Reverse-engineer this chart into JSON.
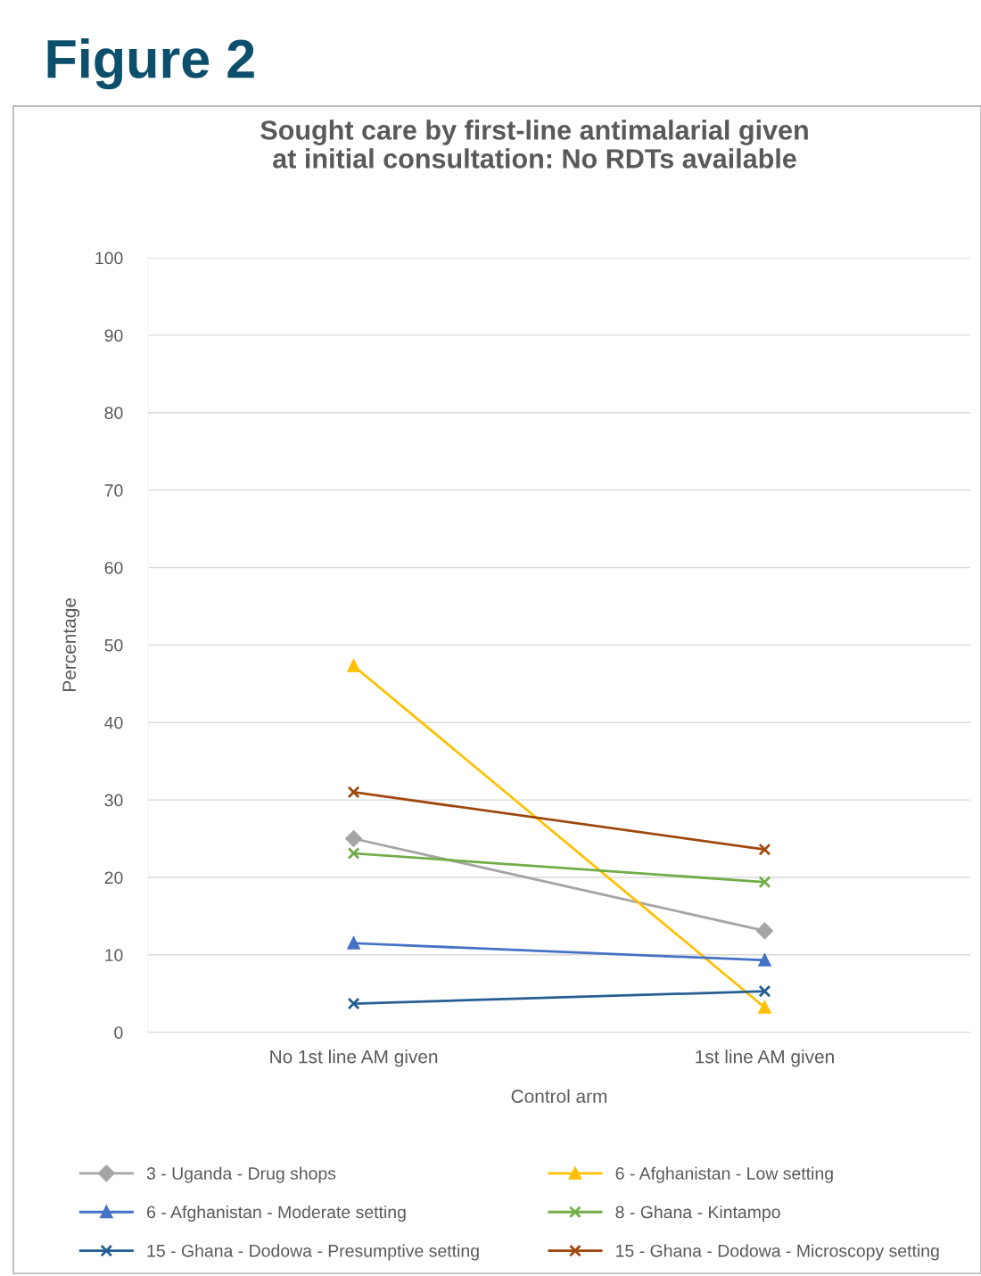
{
  "chart_data": {
    "type": "line",
    "title": "Sought care by first-line antimalarial given\nat initial consultation: No RDTs available",
    "annotations": [
      "Figure 2"
    ],
    "xlabel": "Control arm",
    "ylabel": "Percentage",
    "categories": [
      "No 1st line AM given",
      "1st line AM given"
    ],
    "ylim": [
      0,
      100
    ],
    "yticks": [
      0,
      10,
      20,
      30,
      40,
      50,
      60,
      70,
      80,
      90,
      100
    ],
    "grid": "y",
    "legend": "bottom",
    "series": [
      {
        "name": "3 - Uganda - Drug shops",
        "color": "#a5a5a5",
        "marker": "diamond",
        "values": [
          25.0,
          13.1
        ]
      },
      {
        "name": "6 - Afghanistan - Low setting",
        "color": "#ffc000",
        "marker": "triangle",
        "values": [
          47.3,
          3.2
        ]
      },
      {
        "name": "6 - Afghanistan - Moderate setting",
        "color": "#4472c4",
        "marker": "triangle",
        "values": [
          11.5,
          9.3
        ]
      },
      {
        "name": "8 - Ghana - Kintampo",
        "color": "#70ad47",
        "marker": "cross",
        "values": [
          23.1,
          19.4
        ]
      },
      {
        "name": "15 - Ghana - Dodowa - Presumptive setting",
        "color": "#255e91",
        "marker": "cross",
        "values": [
          3.7,
          5.3
        ]
      },
      {
        "name": "15 - Ghana - Dodowa - Microscopy setting",
        "color": "#9e480e",
        "marker": "cross",
        "values": [
          31.0,
          23.6
        ]
      }
    ]
  }
}
